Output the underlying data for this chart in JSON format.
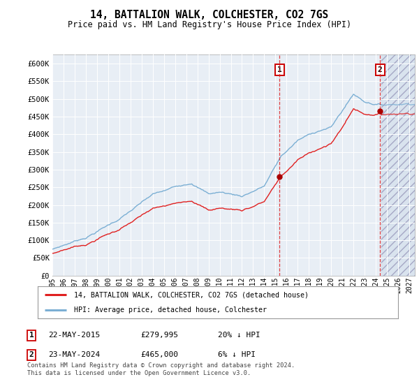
{
  "title": "14, BATTALION WALK, COLCHESTER, CO2 7GS",
  "subtitle": "Price paid vs. HM Land Registry's House Price Index (HPI)",
  "ylabel_ticks": [
    "£0",
    "£50K",
    "£100K",
    "£150K",
    "£200K",
    "£250K",
    "£300K",
    "£350K",
    "£400K",
    "£450K",
    "£500K",
    "£550K",
    "£600K"
  ],
  "ytick_values": [
    0,
    50000,
    100000,
    150000,
    200000,
    250000,
    300000,
    350000,
    400000,
    450000,
    500000,
    550000,
    600000
  ],
  "ylim": [
    0,
    625000
  ],
  "xlim_start": 1995.0,
  "xlim_end": 2027.5,
  "xticks": [
    1995,
    1996,
    1997,
    1998,
    1999,
    2000,
    2001,
    2002,
    2003,
    2004,
    2005,
    2006,
    2007,
    2008,
    2009,
    2010,
    2011,
    2012,
    2013,
    2014,
    2015,
    2016,
    2017,
    2018,
    2019,
    2020,
    2021,
    2022,
    2023,
    2024,
    2025,
    2026,
    2027
  ],
  "hpi_color": "#7bafd4",
  "price_color": "#e02020",
  "marker_color": "#aa0000",
  "vline_color": "#dd2222",
  "marker1_x": 2015.38,
  "marker1_y": 279995,
  "marker2_x": 2024.38,
  "marker2_y": 465000,
  "annotation1_label": "1",
  "annotation2_label": "2",
  "legend_line1": "14, BATTALION WALK, COLCHESTER, CO2 7GS (detached house)",
  "legend_line2": "HPI: Average price, detached house, Colchester",
  "table_row1": [
    "1",
    "22-MAY-2015",
    "£279,995",
    "20% ↓ HPI"
  ],
  "table_row2": [
    "2",
    "23-MAY-2024",
    "£465,000",
    "6% ↓ HPI"
  ],
  "footnote": "Contains HM Land Registry data © Crown copyright and database right 2024.\nThis data is licensed under the Open Government Licence v3.0.",
  "bg_color": "#ffffff",
  "grid_color": "#cccccc",
  "plot_bg": "#e8eef5",
  "hatch_fill_color": "#d0dcea",
  "hatch_edge_color": "#9999bb",
  "future_start": 2024.5
}
